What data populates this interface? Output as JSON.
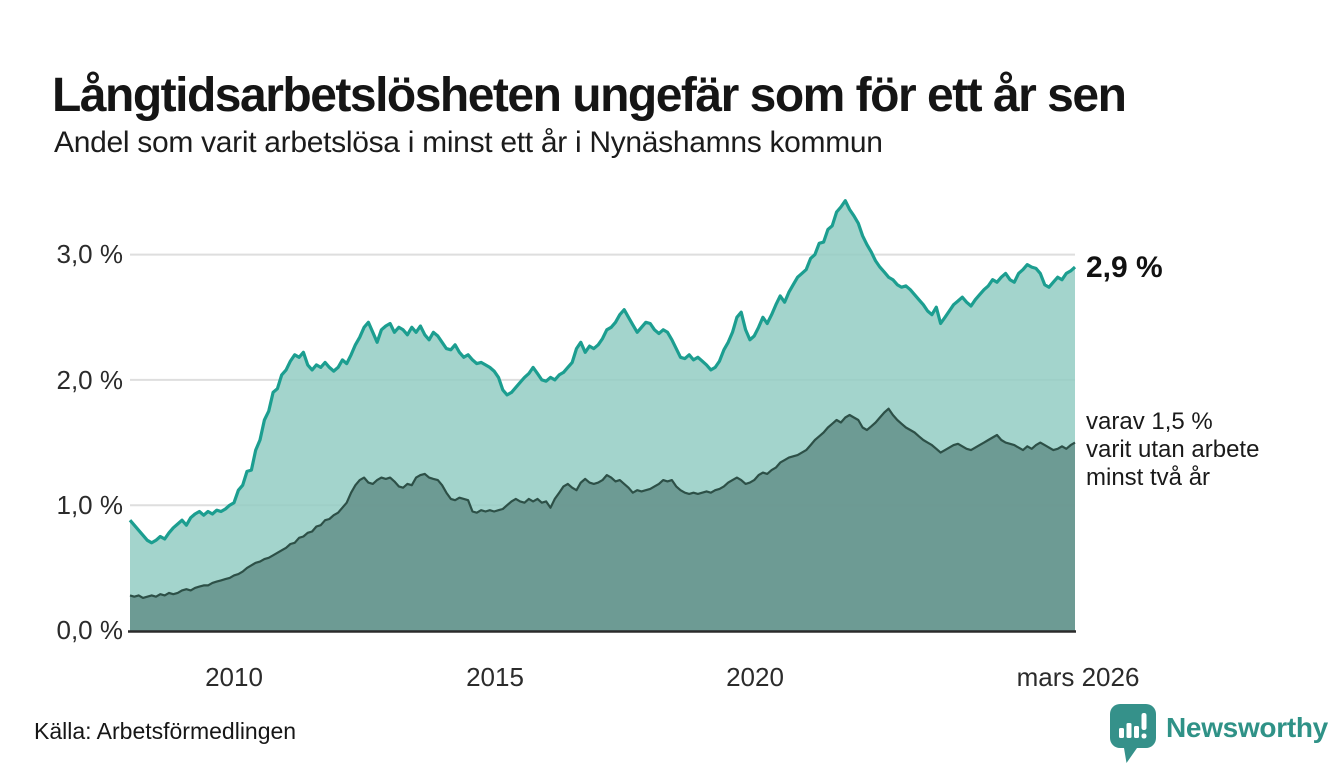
{
  "header": {
    "title": "Långtidsarbetslösheten ungefär som för ett år sen",
    "subtitle": "Andel som varit arbetslösa i minst ett år i Nynäshamns kommun"
  },
  "annotations": {
    "latest_total": "2,9 %",
    "secondary_lines": [
      "varav 1,5 %",
      "varit utan arbete",
      "minst två år"
    ]
  },
  "source": "Källa: Arbetsförmedlingen",
  "brand": {
    "name": "Newsworthy",
    "color": "#2f9287",
    "icon": "bar-chart-speech-bubble"
  },
  "colors": {
    "line_total": "#1c9e90",
    "fill_total": "#93ccc3",
    "line_two_years": "#2d5047",
    "fill_two_years": "#649089",
    "gridline": "#dedede",
    "axis_line": "#2b2b2b"
  },
  "chart_data": {
    "type": "area",
    "title": "Långtidsarbetslösheten ungefär som för ett år sen",
    "subtitle": "Andel som varit arbetslösa i minst ett år i Nynäshamns kommun",
    "x_start": "januari 2008",
    "x_end": "mars 2026",
    "x_tick_labels": [
      "2010",
      "2015",
      "2020",
      "mars 2026"
    ],
    "y_tick_labels_top_down": [
      "3,0 %",
      "2,0 %",
      "1,0 %",
      "0,0 %"
    ],
    "y_ticks_pct": [
      0.0,
      1.0,
      2.0,
      3.0
    ],
    "ylim": [
      0.0,
      3.6
    ],
    "grid": true,
    "legend": "none (direct labels at line ends)",
    "unit": "%",
    "frequency": "monthly",
    "series": [
      {
        "name": "arbetslösa minst ett år",
        "end_label": "2,9 %",
        "end_value": 2.9,
        "values": [
          0.88,
          0.84,
          0.8,
          0.76,
          0.72,
          0.7,
          0.72,
          0.75,
          0.73,
          0.78,
          0.82,
          0.85,
          0.88,
          0.84,
          0.9,
          0.93,
          0.95,
          0.92,
          0.95,
          0.93,
          0.96,
          0.95,
          0.97,
          1.0,
          1.02,
          1.12,
          1.16,
          1.27,
          1.28,
          1.44,
          1.52,
          1.68,
          1.75,
          1.9,
          1.93,
          2.04,
          2.08,
          2.15,
          2.2,
          2.18,
          2.22,
          2.12,
          2.08,
          2.12,
          2.1,
          2.14,
          2.1,
          2.07,
          2.1,
          2.16,
          2.13,
          2.2,
          2.28,
          2.34,
          2.42,
          2.46,
          2.38,
          2.3,
          2.4,
          2.43,
          2.45,
          2.38,
          2.42,
          2.4,
          2.36,
          2.42,
          2.38,
          2.43,
          2.36,
          2.32,
          2.38,
          2.35,
          2.3,
          2.25,
          2.24,
          2.28,
          2.22,
          2.18,
          2.2,
          2.16,
          2.13,
          2.14,
          2.12,
          2.1,
          2.07,
          2.02,
          1.92,
          1.88,
          1.9,
          1.94,
          1.98,
          2.02,
          2.05,
          2.1,
          2.05,
          2.0,
          1.99,
          2.02,
          2.0,
          2.04,
          2.06,
          2.1,
          2.14,
          2.25,
          2.3,
          2.22,
          2.27,
          2.25,
          2.28,
          2.33,
          2.4,
          2.42,
          2.46,
          2.52,
          2.56,
          2.5,
          2.44,
          2.38,
          2.42,
          2.46,
          2.45,
          2.4,
          2.37,
          2.4,
          2.38,
          2.32,
          2.25,
          2.18,
          2.17,
          2.2,
          2.16,
          2.18,
          2.15,
          2.12,
          2.08,
          2.1,
          2.15,
          2.24,
          2.3,
          2.38,
          2.5,
          2.54,
          2.4,
          2.32,
          2.35,
          2.42,
          2.5,
          2.45,
          2.52,
          2.6,
          2.67,
          2.62,
          2.7,
          2.76,
          2.82,
          2.85,
          2.88,
          2.97,
          3.0,
          3.09,
          3.1,
          3.2,
          3.23,
          3.34,
          3.38,
          3.43,
          3.36,
          3.31,
          3.25,
          3.15,
          3.08,
          3.02,
          2.95,
          2.9,
          2.86,
          2.82,
          2.8,
          2.76,
          2.74,
          2.75,
          2.72,
          2.68,
          2.64,
          2.6,
          2.55,
          2.52,
          2.58,
          2.45,
          2.5,
          2.55,
          2.6,
          2.63,
          2.66,
          2.62,
          2.59,
          2.64,
          2.68,
          2.72,
          2.75,
          2.8,
          2.78,
          2.82,
          2.85,
          2.8,
          2.78,
          2.85,
          2.88,
          2.92,
          2.9,
          2.89,
          2.85,
          2.76,
          2.74,
          2.78,
          2.82,
          2.8,
          2.85,
          2.87,
          2.9
        ]
      },
      {
        "name": "varav arbetslösa minst två år",
        "end_label": "varav 1,5 % varit utan arbete minst två år",
        "end_value": 1.5,
        "values": [
          0.28,
          0.27,
          0.28,
          0.26,
          0.27,
          0.28,
          0.27,
          0.29,
          0.28,
          0.3,
          0.29,
          0.3,
          0.32,
          0.33,
          0.32,
          0.34,
          0.35,
          0.36,
          0.36,
          0.38,
          0.39,
          0.4,
          0.41,
          0.42,
          0.44,
          0.45,
          0.47,
          0.5,
          0.52,
          0.54,
          0.55,
          0.57,
          0.58,
          0.6,
          0.62,
          0.64,
          0.66,
          0.69,
          0.7,
          0.74,
          0.75,
          0.78,
          0.79,
          0.83,
          0.84,
          0.88,
          0.89,
          0.92,
          0.94,
          0.98,
          1.02,
          1.1,
          1.16,
          1.2,
          1.22,
          1.18,
          1.17,
          1.2,
          1.22,
          1.21,
          1.22,
          1.19,
          1.15,
          1.14,
          1.17,
          1.16,
          1.22,
          1.24,
          1.25,
          1.22,
          1.21,
          1.2,
          1.16,
          1.1,
          1.05,
          1.04,
          1.06,
          1.05,
          1.04,
          0.95,
          0.94,
          0.96,
          0.95,
          0.96,
          0.95,
          0.96,
          0.97,
          1.0,
          1.03,
          1.05,
          1.03,
          1.02,
          1.05,
          1.03,
          1.05,
          1.02,
          1.03,
          0.98,
          1.05,
          1.1,
          1.15,
          1.17,
          1.14,
          1.12,
          1.18,
          1.21,
          1.18,
          1.17,
          1.18,
          1.2,
          1.24,
          1.22,
          1.19,
          1.2,
          1.17,
          1.14,
          1.1,
          1.12,
          1.11,
          1.12,
          1.13,
          1.15,
          1.17,
          1.2,
          1.19,
          1.2,
          1.15,
          1.12,
          1.1,
          1.09,
          1.1,
          1.09,
          1.1,
          1.11,
          1.1,
          1.12,
          1.13,
          1.15,
          1.18,
          1.2,
          1.22,
          1.2,
          1.17,
          1.18,
          1.2,
          1.24,
          1.26,
          1.25,
          1.28,
          1.3,
          1.34,
          1.36,
          1.38,
          1.39,
          1.4,
          1.42,
          1.44,
          1.48,
          1.52,
          1.55,
          1.58,
          1.62,
          1.65,
          1.68,
          1.66,
          1.7,
          1.72,
          1.7,
          1.68,
          1.62,
          1.6,
          1.63,
          1.66,
          1.7,
          1.74,
          1.77,
          1.72,
          1.68,
          1.65,
          1.62,
          1.6,
          1.58,
          1.55,
          1.52,
          1.5,
          1.48,
          1.45,
          1.42,
          1.44,
          1.46,
          1.48,
          1.49,
          1.47,
          1.45,
          1.44,
          1.46,
          1.48,
          1.5,
          1.52,
          1.54,
          1.56,
          1.52,
          1.5,
          1.49,
          1.48,
          1.46,
          1.44,
          1.47,
          1.45,
          1.48,
          1.5,
          1.48,
          1.46,
          1.44,
          1.45,
          1.47,
          1.45,
          1.48,
          1.5
        ]
      }
    ]
  }
}
